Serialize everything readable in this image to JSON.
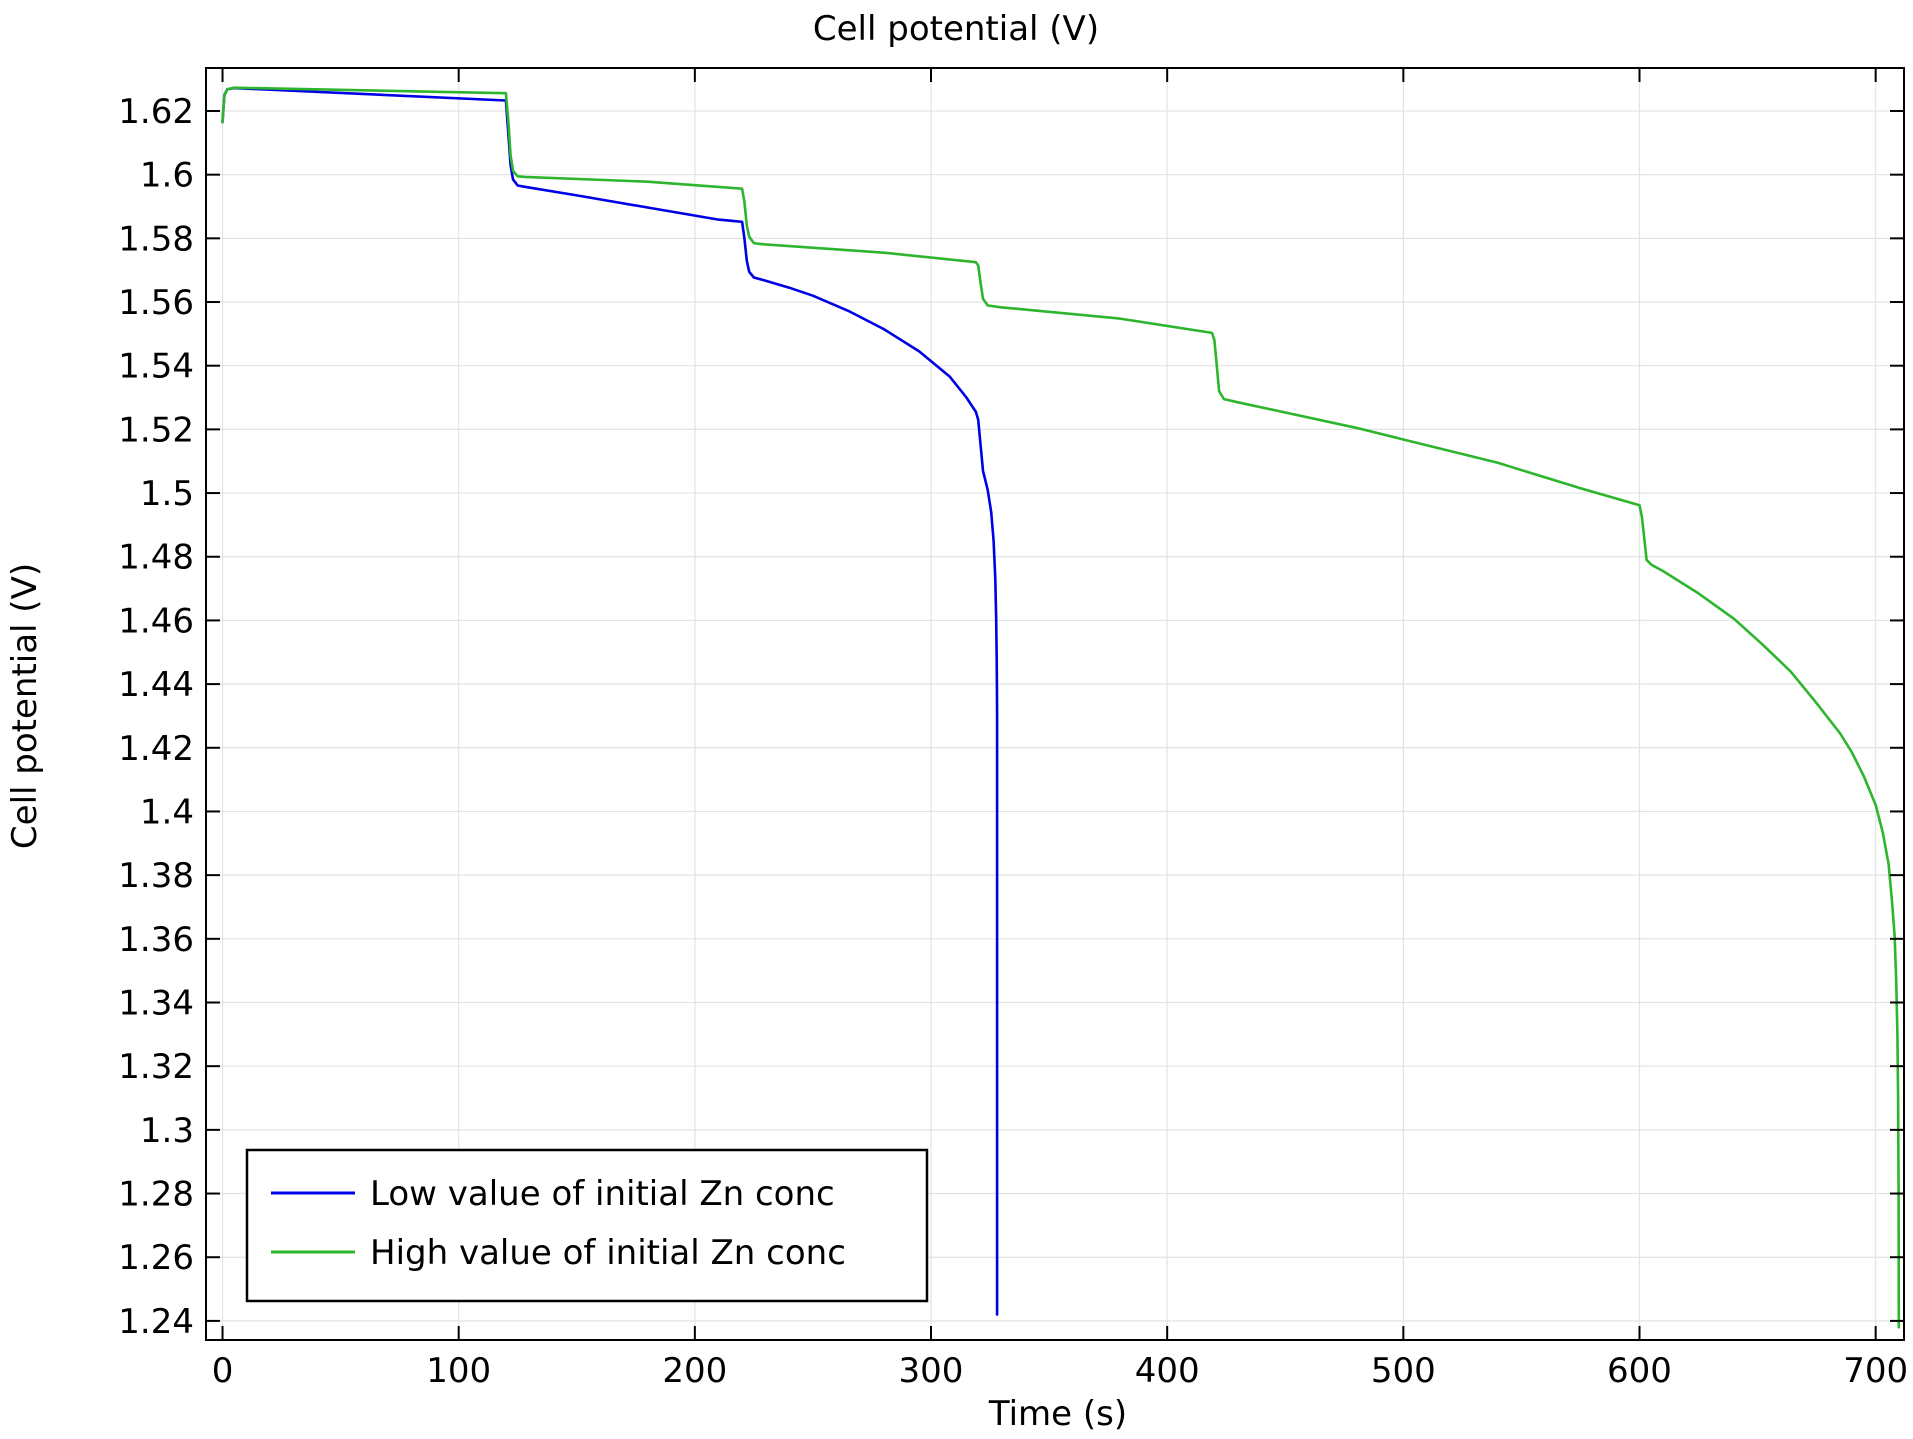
{
  "chart_data": {
    "type": "line",
    "title": "Cell potential (V)",
    "xlabel": "Time (s)",
    "ylabel": "Cell potential (V)",
    "xlim": [
      -7,
      712
    ],
    "ylim": [
      1.234,
      1.6335
    ],
    "x_ticks": [
      0,
      100,
      200,
      300,
      400,
      500,
      600,
      700
    ],
    "y_ticks": [
      1.24,
      1.26,
      1.28,
      1.3,
      1.32,
      1.34,
      1.36,
      1.38,
      1.4,
      1.42,
      1.44,
      1.46,
      1.48,
      1.5,
      1.52,
      1.54,
      1.56,
      1.58,
      1.6,
      1.62
    ],
    "y_tick_labels": [
      "1.24",
      "1.26",
      "1.28",
      "1.3",
      "1.32",
      "1.34",
      "1.36",
      "1.38",
      "1.4",
      "1.42",
      "1.44",
      "1.46",
      "1.48",
      "1.5",
      "1.52",
      "1.54",
      "1.56",
      "1.58",
      "1.6",
      "1.62"
    ],
    "grid": true,
    "legend_position": "bottom-left",
    "series": [
      {
        "name": "Low value of initial Zn conc",
        "color": "#0000e6",
        "x": [
          0,
          0.8,
          2,
          5,
          120,
          121,
          122,
          123,
          125,
          128,
          150,
          180,
          210,
          220,
          221,
          222,
          223,
          225,
          230,
          240,
          250,
          265,
          280,
          295,
          308,
          315,
          319,
          320,
          321,
          322,
          324,
          325.5,
          326.5,
          327.2,
          327.6,
          327.8,
          327.9,
          328,
          328,
          328
        ],
        "y": [
          1.6165,
          1.625,
          1.6268,
          1.6272,
          1.6233,
          1.613,
          1.603,
          1.5985,
          1.5966,
          1.5962,
          1.5935,
          1.5897,
          1.5859,
          1.5852,
          1.58,
          1.573,
          1.5695,
          1.5677,
          1.5667,
          1.5645,
          1.562,
          1.5572,
          1.5515,
          1.5445,
          1.5365,
          1.53,
          1.5255,
          1.523,
          1.515,
          1.507,
          1.501,
          1.494,
          1.485,
          1.473,
          1.46,
          1.448,
          1.44,
          1.43,
          1.35,
          1.242
        ]
      },
      {
        "name": "High value of initial Zn conc",
        "color": "#2db52d",
        "x": [
          0,
          0.8,
          2,
          5,
          120,
          121,
          122,
          123,
          125,
          128,
          180,
          220,
          221,
          222,
          223,
          225,
          228,
          280,
          319,
          320,
          321,
          322,
          324,
          330,
          380,
          419,
          420,
          421,
          422,
          424,
          430,
          480,
          540,
          575,
          600,
          601,
          602,
          603,
          605,
          610,
          625,
          640,
          652,
          664,
          675,
          685,
          690,
          695,
          700,
          703,
          705.5,
          707,
          708,
          708.7,
          709.2,
          709.5,
          709.7,
          709.8
        ],
        "y": [
          1.6165,
          1.625,
          1.6268,
          1.6273,
          1.6256,
          1.617,
          1.606,
          1.6012,
          1.5995,
          1.5993,
          1.5978,
          1.5956,
          1.5915,
          1.584,
          1.5805,
          1.5785,
          1.5782,
          1.5755,
          1.5725,
          1.5715,
          1.566,
          1.561,
          1.5589,
          1.5583,
          1.5548,
          1.5503,
          1.548,
          1.54,
          1.532,
          1.5295,
          1.5285,
          1.5205,
          1.5095,
          1.5015,
          1.4962,
          1.4925,
          1.486,
          1.479,
          1.4775,
          1.4755,
          1.4685,
          1.4605,
          1.4525,
          1.444,
          1.434,
          1.4245,
          1.4185,
          1.411,
          1.402,
          1.3935,
          1.3835,
          1.371,
          1.361,
          1.347,
          1.33,
          1.31,
          1.28,
          1.238
        ]
      }
    ]
  }
}
